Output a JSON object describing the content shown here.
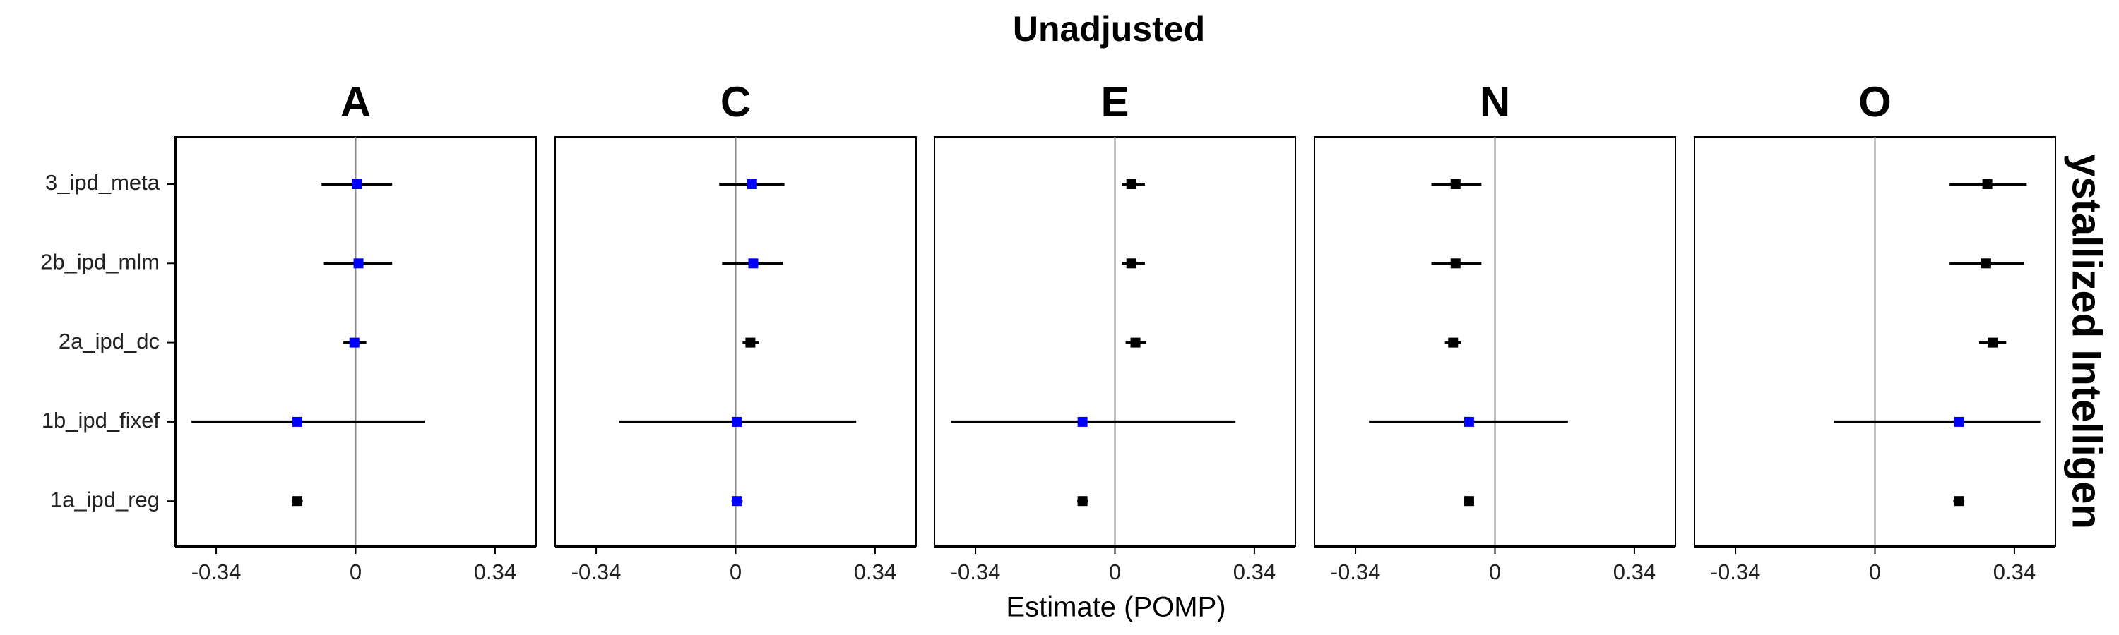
{
  "chart_data": {
    "type": "forest",
    "title": "Unadjusted",
    "xlabel": "Estimate (POMP)",
    "strip_label": "ystallized Intelligen",
    "categories": [
      "3_ipd_meta",
      "2b_ipd_mlm",
      "2a_ipd_dc",
      "1b_ipd_fixef",
      "1a_ipd_reg"
    ],
    "xlim": [
      -0.44,
      0.44
    ],
    "xticks": [
      -0.34,
      0,
      0.34
    ],
    "panels": [
      {
        "name": "A",
        "values": [
          0.003,
          0.007,
          -0.003,
          -0.142,
          -0.142
        ],
        "lower": [
          -0.083,
          -0.079,
          -0.03,
          -0.4,
          -0.155
        ],
        "upper": [
          0.089,
          0.089,
          0.026,
          0.168,
          -0.129
        ],
        "colors": [
          "#0000ff",
          "#0000ff",
          "#0000ff",
          "#0000ff",
          "#000000"
        ]
      },
      {
        "name": "C",
        "values": [
          0.04,
          0.043,
          0.036,
          0.003,
          0.003
        ],
        "lower": [
          -0.04,
          -0.033,
          0.017,
          -0.284,
          -0.01
        ],
        "upper": [
          0.119,
          0.116,
          0.056,
          0.294,
          0.017
        ],
        "colors": [
          "#0000ff",
          "#0000ff",
          "#000000",
          "#0000ff",
          "#0000ff"
        ]
      },
      {
        "name": "E",
        "values": [
          0.04,
          0.04,
          0.05,
          -0.079,
          -0.079
        ],
        "lower": [
          0.017,
          0.017,
          0.026,
          -0.4,
          -0.092
        ],
        "upper": [
          0.073,
          0.073,
          0.076,
          0.294,
          -0.066
        ],
        "colors": [
          "#000000",
          "#000000",
          "#000000",
          "#0000ff",
          "#000000"
        ]
      },
      {
        "name": "N",
        "values": [
          -0.096,
          -0.096,
          -0.102,
          -0.063,
          -0.063
        ],
        "lower": [
          -0.155,
          -0.155,
          -0.122,
          -0.307,
          -0.073
        ],
        "upper": [
          -0.033,
          -0.033,
          -0.083,
          0.178,
          -0.053
        ],
        "colors": [
          "#000000",
          "#000000",
          "#000000",
          "#0000ff",
          "#000000"
        ]
      },
      {
        "name": "O",
        "values": [
          0.274,
          0.271,
          0.287,
          0.205,
          0.205
        ],
        "lower": [
          0.182,
          0.182,
          0.254,
          -0.099,
          0.191
        ],
        "upper": [
          0.37,
          0.363,
          0.32,
          0.403,
          0.218
        ],
        "colors": [
          "#000000",
          "#000000",
          "#000000",
          "#0000ff",
          "#000000"
        ]
      }
    ]
  }
}
